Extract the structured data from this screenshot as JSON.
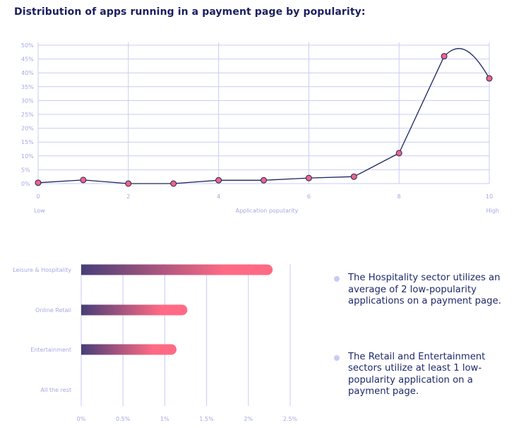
{
  "title": "Distribution of apps running in a payment page by popularity:",
  "chart_data": [
    {
      "type": "line",
      "title": "Distribution of apps running in a payment page by popularity:",
      "xlabel": "Application poputarity",
      "x_low_label": "Low",
      "x_high_label": "High",
      "x": [
        0,
        1,
        2,
        3,
        4,
        5,
        6,
        7,
        8,
        9,
        10
      ],
      "values": [
        0.3,
        1.3,
        0,
        0,
        1.2,
        1.2,
        2,
        2.5,
        11,
        46,
        38
      ],
      "xlim": [
        0,
        10
      ],
      "ylim": [
        0,
        50
      ],
      "xticks": [
        "0",
        "2",
        "4",
        "6",
        "8",
        "10"
      ],
      "yticks": [
        "0%",
        "5%",
        "10%",
        "15%",
        "20%",
        "25%",
        "30%",
        "35%",
        "40%",
        "45%",
        "50%"
      ],
      "grid": true,
      "colors": {
        "line": "#1b2560",
        "marker": "#f26482",
        "grid": "#c9cbf7"
      }
    },
    {
      "type": "bar",
      "orientation": "horizontal",
      "categories": [
        "Leisure & Hospitality",
        "Online Retail",
        "Entertainment",
        "All the rest"
      ],
      "values": [
        2.29,
        1.27,
        1.14,
        0
      ],
      "xlim": [
        0,
        2.5
      ],
      "xticks": [
        "0%",
        "0.5%",
        "1%",
        "1.5%",
        "2%",
        "2.5%"
      ],
      "grid": true,
      "colors": {
        "start": "#463e78",
        "end": "#ff6a84"
      }
    }
  ],
  "bullets": [
    "The Hospitality sector utilizes an average of 2 low-popularity applications on a payment page.",
    "The Retail and Entertainment sectors utilize at least 1 low-popularity application on a payment page."
  ]
}
